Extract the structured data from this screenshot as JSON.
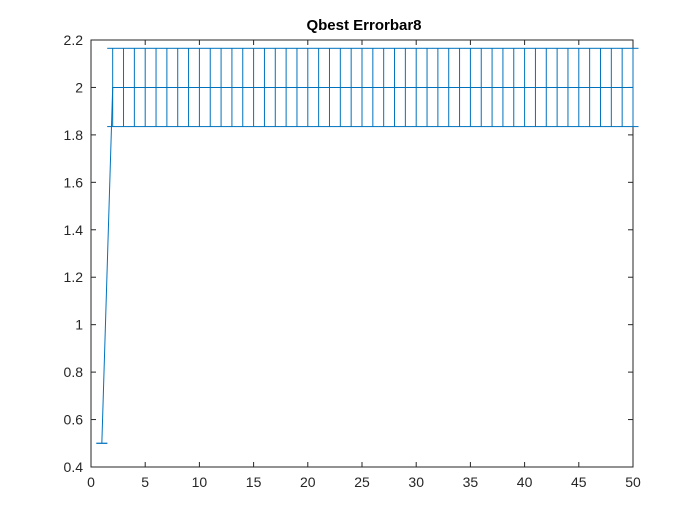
{
  "chart_data": {
    "type": "line",
    "title": "Qbest Errorbar8",
    "xlabel": "",
    "ylabel": "",
    "xlim": [
      0,
      50
    ],
    "ylim": [
      0.4,
      2.2
    ],
    "xticks": [
      0,
      5,
      10,
      15,
      20,
      25,
      30,
      35,
      40,
      45,
      50
    ],
    "yticks": [
      0.4,
      0.6,
      0.8,
      1,
      1.2,
      1.4,
      1.6,
      1.8,
      2,
      2.2
    ],
    "xtick_labels": [
      "0",
      "5",
      "10",
      "15",
      "20",
      "25",
      "30",
      "35",
      "40",
      "45",
      "50"
    ],
    "ytick_labels": [
      "0.4",
      "0.6",
      "0.8",
      "1",
      "1.2",
      "1.4",
      "1.6",
      "1.8",
      "2",
      "2.2"
    ],
    "grid": false,
    "series_color": "#0072BD",
    "series": [
      {
        "x": [
          1,
          2,
          3,
          4,
          5,
          6,
          7,
          8,
          9,
          10,
          11,
          12,
          13,
          14,
          15,
          16,
          17,
          18,
          19,
          20,
          21,
          22,
          23,
          24,
          25,
          26,
          27,
          28,
          29,
          30,
          31,
          32,
          33,
          34,
          35,
          36,
          37,
          38,
          39,
          40,
          41,
          42,
          43,
          44,
          45,
          46,
          47,
          48,
          49,
          50
        ],
        "y": [
          0.5,
          2,
          2,
          2,
          2,
          2,
          2,
          2,
          2,
          2,
          2,
          2,
          2,
          2,
          2,
          2,
          2,
          2,
          2,
          2,
          2,
          2,
          2,
          2,
          2,
          2,
          2,
          2,
          2,
          2,
          2,
          2,
          2,
          2,
          2,
          2,
          2,
          2,
          2,
          2,
          2,
          2,
          2,
          2,
          2,
          2,
          2,
          2,
          2,
          2
        ],
        "err": [
          0,
          0.165,
          0.165,
          0.165,
          0.165,
          0.165,
          0.165,
          0.165,
          0.165,
          0.165,
          0.165,
          0.165,
          0.165,
          0.165,
          0.165,
          0.165,
          0.165,
          0.165,
          0.165,
          0.165,
          0.165,
          0.165,
          0.165,
          0.165,
          0.165,
          0.165,
          0.165,
          0.165,
          0.165,
          0.165,
          0.165,
          0.165,
          0.165,
          0.165,
          0.165,
          0.165,
          0.165,
          0.165,
          0.165,
          0.165,
          0.165,
          0.165,
          0.165,
          0.165,
          0.165,
          0.165,
          0.165,
          0.165,
          0.165,
          0.165
        ]
      }
    ]
  }
}
